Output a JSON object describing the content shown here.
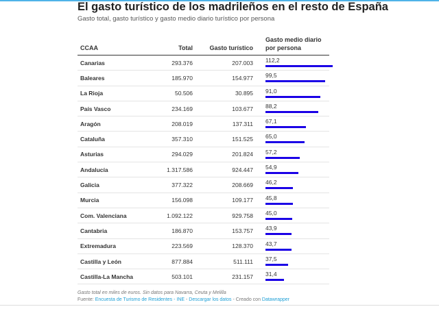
{
  "title": "El gasto turístico de los madrileños en el resto de España",
  "subtitle": "Gasto total, gasto turístico y gasto medio diario turístico por persona",
  "headers": [
    "CCAA",
    "Total",
    "Gasto turístico",
    "Gasto medio diario por persona"
  ],
  "chart_data": {
    "type": "table",
    "bar_color": "#1a00e6",
    "bar_max": 112.2,
    "rows": [
      {
        "ccaa": "Canarias",
        "total": "293.376",
        "turistico": "207.003",
        "medio": "112,2",
        "value": 112.2
      },
      {
        "ccaa": "Baleares",
        "total": "185.970",
        "turistico": "154.977",
        "medio": "99,5",
        "value": 99.5
      },
      {
        "ccaa": "La Rioja",
        "total": "50.506",
        "turistico": "30.895",
        "medio": "91,0",
        "value": 91.0
      },
      {
        "ccaa": "País Vasco",
        "total": "234.169",
        "turistico": "103.677",
        "medio": "88,2",
        "value": 88.2
      },
      {
        "ccaa": "Aragón",
        "total": "208.019",
        "turistico": "137.311",
        "medio": "67,1",
        "value": 67.1
      },
      {
        "ccaa": "Cataluña",
        "total": "357.310",
        "turistico": "151.525",
        "medio": "65,0",
        "value": 65.0
      },
      {
        "ccaa": "Asturias",
        "total": "294.029",
        "turistico": "201.824",
        "medio": "57,2",
        "value": 57.2
      },
      {
        "ccaa": "Andalucía",
        "total": "1.317.586",
        "turistico": "924.447",
        "medio": "54,9",
        "value": 54.9
      },
      {
        "ccaa": "Galicia",
        "total": "377.322",
        "turistico": "208.669",
        "medio": "46,2",
        "value": 46.2
      },
      {
        "ccaa": "Murcia",
        "total": "156.098",
        "turistico": "109.177",
        "medio": "45,8",
        "value": 45.8
      },
      {
        "ccaa": "Com. Valenciana",
        "total": "1.092.122",
        "turistico": "929.758",
        "medio": "45,0",
        "value": 45.0
      },
      {
        "ccaa": "Cantabria",
        "total": "186.870",
        "turistico": "153.757",
        "medio": "43,9",
        "value": 43.9
      },
      {
        "ccaa": "Extremadura",
        "total": "223.569",
        "turistico": "128.370",
        "medio": "43,7",
        "value": 43.7
      },
      {
        "ccaa": "Castilla y León",
        "total": "877.884",
        "turistico": "511.111",
        "medio": "37,5",
        "value": 37.5
      },
      {
        "ccaa": "Castilla-La Mancha",
        "total": "503.101",
        "turistico": "231.157",
        "medio": "31,4",
        "value": 31.4
      }
    ]
  },
  "note": "Gasto total en miles de euros. Sin datos para Navarra, Ceuta y Melilla",
  "source": {
    "label": "Fuente:",
    "link": "Encuesta de Turismo de Residentes - INE",
    "sep1": " - ",
    "download": "Descargar los datos",
    "sep2": " - Creado con ",
    "tool": "Datawrapper"
  }
}
